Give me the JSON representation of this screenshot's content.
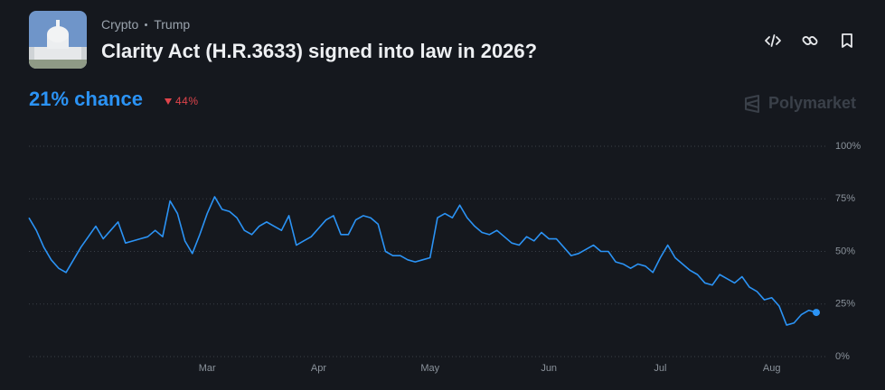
{
  "header": {
    "tags": [
      "Crypto",
      "Trump"
    ],
    "title": "Clarity Act (H.R.3633) signed into law in 2026?"
  },
  "odds": {
    "chance": "21% chance",
    "change": "44%"
  },
  "brand": "Polymarket",
  "chart_data": {
    "type": "line",
    "color": "#2b93f5",
    "categories": [
      null,
      null,
      null,
      null,
      null,
      null,
      null,
      null,
      null,
      null,
      null,
      null,
      null,
      null,
      null,
      null,
      null,
      null,
      null,
      null,
      null,
      null,
      null,
      null,
      "Mar",
      null,
      null,
      null,
      null,
      null,
      null,
      null,
      null,
      null,
      null,
      null,
      null,
      null,
      null,
      "Apr",
      null,
      null,
      null,
      null,
      null,
      null,
      null,
      null,
      null,
      null,
      null,
      null,
      null,
      null,
      "May",
      null,
      null,
      null,
      null,
      null,
      null,
      null,
      null,
      null,
      null,
      null,
      null,
      null,
      null,
      null,
      "Jun",
      null,
      null,
      null,
      null,
      null,
      null,
      null,
      null,
      null,
      null,
      null,
      null,
      null,
      null,
      "Jul",
      null,
      null,
      null,
      null,
      null,
      null,
      null,
      null,
      null,
      null,
      null,
      null,
      null,
      null,
      "Aug",
      null,
      null,
      null,
      null,
      null,
      null
    ],
    "values": [
      66,
      60,
      52,
      46,
      42,
      40,
      46,
      52,
      57,
      62,
      56,
      60,
      64,
      54,
      55,
      56,
      57,
      60,
      57,
      74,
      68,
      55,
      49,
      58,
      68,
      76,
      70,
      69,
      66,
      60,
      58,
      62,
      64,
      62,
      60,
      67,
      53,
      55,
      57,
      61,
      65,
      67,
      58,
      58,
      65,
      67,
      66,
      63,
      50,
      48,
      48,
      46,
      45,
      46,
      47,
      66,
      68,
      66,
      72,
      66,
      62,
      59,
      58,
      60,
      57,
      54,
      53,
      57,
      55,
      59,
      56,
      56,
      52,
      48,
      49,
      51,
      53,
      50,
      50,
      45,
      44,
      42,
      44,
      43,
      40,
      47,
      53,
      47,
      44,
      41,
      39,
      35,
      34,
      39,
      37,
      35,
      38,
      33,
      31,
      27,
      28,
      24,
      15,
      16,
      20,
      22,
      21
    ],
    "ylim": [
      0,
      100
    ],
    "yticks": [
      {
        "value": 0,
        "label": "0%"
      },
      {
        "value": 25,
        "label": "25%"
      },
      {
        "value": 50,
        "label": "50%"
      },
      {
        "value": 75,
        "label": "75%"
      },
      {
        "value": 100,
        "label": "100%"
      }
    ],
    "grid": true
  }
}
